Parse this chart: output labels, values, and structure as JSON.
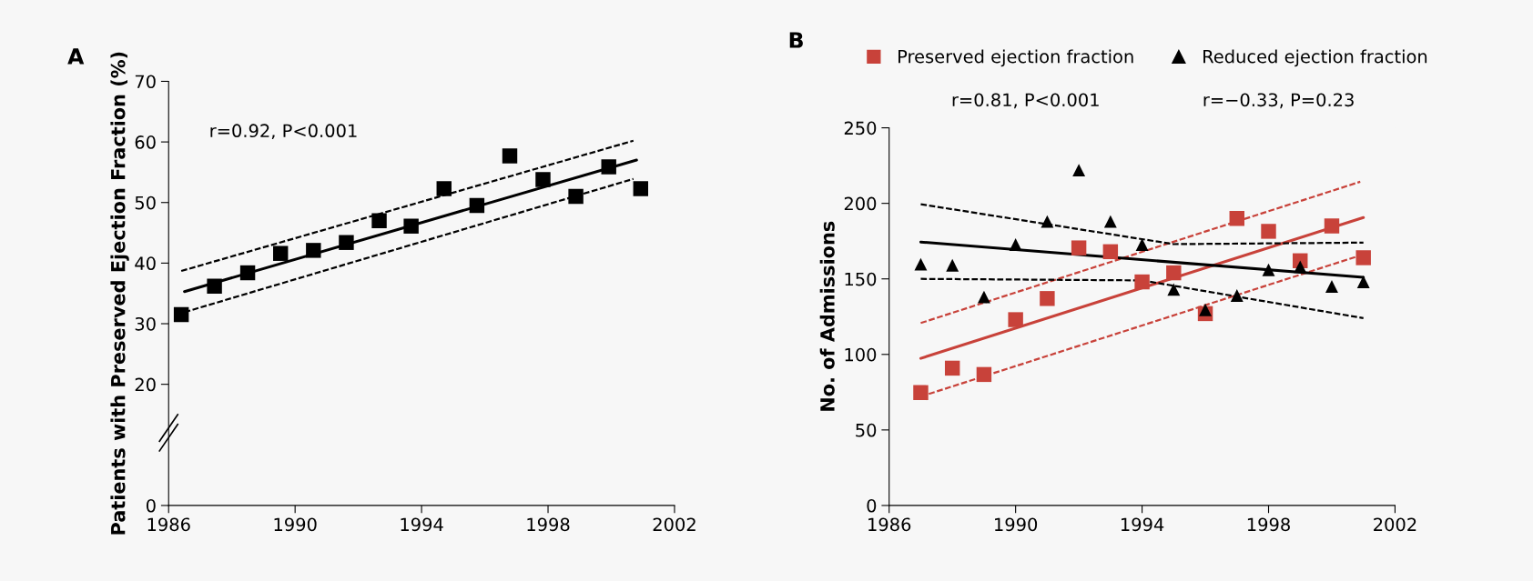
{
  "chart_data": [
    {
      "type": "scatter",
      "title": "A",
      "ylabel": "Patients with Preserved Ejection Fraction (%)",
      "xlim": [
        1986,
        2002
      ],
      "xticks": [
        1986,
        1990,
        1994,
        1998,
        2002
      ],
      "ylim": [
        0,
        70
      ],
      "yticks": [
        0,
        20,
        30,
        40,
        50,
        60,
        70
      ],
      "grid": false,
      "legend": false,
      "annotations": [
        "r=0.92, P<0.001"
      ],
      "series": [
        {
          "color": "#000000",
          "marker": "square",
          "x": [
            1986.4,
            1987.45,
            1988.5,
            1989.54,
            1990.58,
            1991.62,
            1992.66,
            1993.67,
            1994.71,
            1995.75,
            1996.79,
            1997.84,
            1998.88,
            1999.92,
            2000.93
          ],
          "values": [
            31.5,
            36.2,
            38.4,
            41.6,
            42.1,
            43.4,
            47.0,
            46.1,
            52.3,
            49.5,
            57.7,
            53.8,
            51.0,
            55.9,
            52.3
          ]
        },
        {
          "type": "line",
          "line_style": "solid",
          "color": "#000000",
          "x": [
            1986.5,
            2000.8
          ],
          "values": [
            35.3,
            57.0
          ]
        },
        {
          "type": "line",
          "line_style": "dashed",
          "color": "#000000",
          "x": [
            1986.4,
            2000.7
          ],
          "values": [
            38.7,
            60.2
          ]
        },
        {
          "type": "line",
          "line_style": "dashed",
          "color": "#000000",
          "x": [
            1986.5,
            2000.7
          ],
          "values": [
            31.9,
            53.9
          ]
        }
      ]
    },
    {
      "type": "scatter",
      "title": "B",
      "ylabel": "No. of Admissions",
      "xlim": [
        1986,
        2002
      ],
      "xticks": [
        1986,
        1990,
        1994,
        1998,
        2002
      ],
      "ylim": [
        0,
        250
      ],
      "yticks": [
        0,
        50,
        100,
        150,
        200,
        250
      ],
      "grid": false,
      "legend": "top",
      "annotations": [
        "r=0.81, P<0.001",
        "r=−0.33, P=0.23"
      ],
      "x": [
        1987,
        1988,
        1989,
        1990,
        1991,
        1992,
        1993,
        1994,
        1995,
        1996,
        1997,
        1998,
        1999,
        2000,
        2001
      ],
      "series": [
        {
          "name": "Preserved ejection fraction",
          "color": "#c8423a",
          "marker": "square",
          "values": [
            74.7,
            90.9,
            86.7,
            123,
            137,
            170.5,
            168,
            148,
            154,
            127,
            190,
            181.5,
            162,
            185,
            164
          ]
        },
        {
          "name": "Reduced ejection fraction",
          "color": "#000000",
          "marker": "triangle",
          "values": [
            159.7,
            159,
            138,
            172.7,
            188,
            222,
            188,
            172.7,
            143,
            129.5,
            139,
            156,
            158,
            145,
            148
          ]
        },
        {
          "type": "line",
          "line_style": "solid",
          "color": "#c8423a",
          "x": [
            1987,
            2001
          ],
          "values": [
            97.4,
            190.6
          ]
        },
        {
          "type": "line",
          "line_style": "dashed",
          "color": "#c8423a",
          "x": [
            1987,
            2000.9
          ],
          "values": [
            120.8,
            214.3
          ]
        },
        {
          "type": "line",
          "line_style": "dashed",
          "color": "#c8423a",
          "x": [
            1987,
            2001
          ],
          "values": [
            72.1,
            166.2
          ]
        },
        {
          "type": "line",
          "line_style": "solid",
          "color": "#000000",
          "x": [
            1987,
            2001
          ],
          "values": [
            174.4,
            151
          ]
        },
        {
          "type": "line",
          "line_style": "dashed",
          "color": "#000000",
          "x": [
            1987,
            1995,
            2001
          ],
          "values": [
            199.4,
            173,
            174
          ]
        },
        {
          "type": "line",
          "line_style": "dashed",
          "color": "#000000",
          "x": [
            1987,
            1994,
            2001
          ],
          "values": [
            150,
            149,
            124
          ]
        }
      ]
    }
  ]
}
